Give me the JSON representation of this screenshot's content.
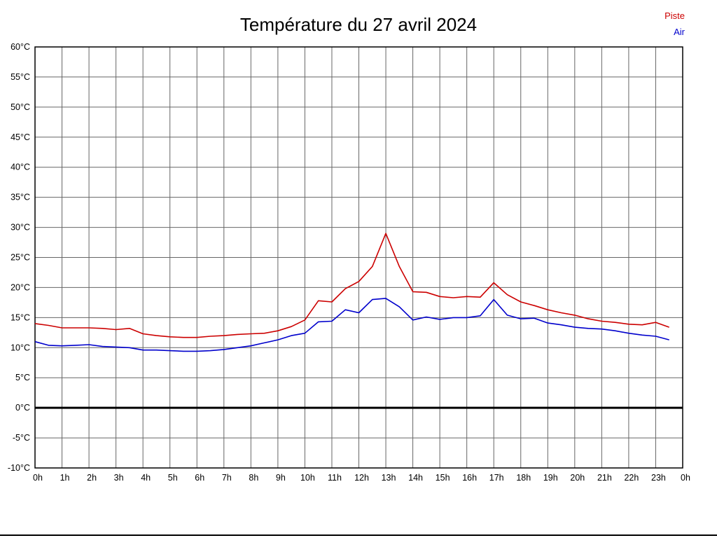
{
  "page": {
    "background": "#ffffff"
  },
  "chart_data": {
    "type": "line",
    "title": "Température du 27 avril 2024",
    "xlabel": "",
    "ylabel": "",
    "x_max": 24,
    "x_ticks": [
      "0h",
      "1h",
      "2h",
      "3h",
      "4h",
      "5h",
      "6h",
      "7h",
      "8h",
      "9h",
      "10h",
      "11h",
      "12h",
      "13h",
      "14h",
      "15h",
      "16h",
      "17h",
      "18h",
      "19h",
      "20h",
      "21h",
      "22h",
      "23h",
      "0h"
    ],
    "ylim": [
      -10,
      60
    ],
    "y_tick_step": 5,
    "y_ticks": [
      "60°C",
      "55°C",
      "50°C",
      "45°C",
      "40°C",
      "35°C",
      "30°C",
      "25°C",
      "20°C",
      "15°C",
      "10°C",
      "5°C",
      "0°C",
      "-5°C",
      "-10°C"
    ],
    "grid": true,
    "grid_color": "#666666",
    "zero_line_color": "#000000",
    "border_color": "#000000",
    "legend_position": "top-right",
    "series": [
      {
        "name": "Piste",
        "color": "#cc0000",
        "x": [
          0,
          0.5,
          1,
          1.5,
          2,
          2.5,
          3,
          3.5,
          4,
          4.5,
          5,
          5.5,
          6,
          6.5,
          7,
          7.5,
          8,
          8.5,
          9,
          9.5,
          10,
          10.5,
          11,
          11.5,
          12,
          12.5,
          13,
          13.5,
          14,
          14.5,
          15,
          15.5,
          16,
          16.5,
          17,
          17.5,
          18,
          18.5,
          19,
          19.5,
          20,
          20.5,
          21,
          21.5,
          22,
          22.5,
          23,
          23.5
        ],
        "values": [
          14.0,
          13.7,
          13.3,
          13.3,
          13.3,
          13.2,
          13.0,
          13.2,
          12.3,
          12.0,
          11.8,
          11.7,
          11.7,
          11.9,
          12.0,
          12.2,
          12.3,
          12.4,
          12.8,
          13.5,
          14.6,
          17.8,
          17.6,
          19.8,
          21.0,
          23.5,
          29.0,
          23.5,
          19.3,
          19.2,
          18.5,
          18.3,
          18.5,
          18.4,
          20.8,
          18.8,
          17.6,
          17.0,
          16.3,
          15.8,
          15.4,
          14.8,
          14.4,
          14.2,
          13.9,
          13.8,
          14.2,
          13.4
        ]
      },
      {
        "name": "Air",
        "color": "#0000cc",
        "x": [
          0,
          0.5,
          1,
          1.5,
          2,
          2.5,
          3,
          3.5,
          4,
          4.5,
          5,
          5.5,
          6,
          6.5,
          7,
          7.5,
          8,
          8.5,
          9,
          9.5,
          10,
          10.5,
          11,
          11.5,
          12,
          12.5,
          13,
          13.5,
          14,
          14.5,
          15,
          15.5,
          16,
          16.5,
          17,
          17.5,
          18,
          18.5,
          19,
          19.5,
          20,
          20.5,
          21,
          21.5,
          22,
          22.5,
          23,
          23.5
        ],
        "values": [
          11.0,
          10.4,
          10.3,
          10.4,
          10.5,
          10.2,
          10.1,
          10.0,
          9.6,
          9.6,
          9.5,
          9.4,
          9.4,
          9.5,
          9.7,
          10.0,
          10.3,
          10.8,
          11.3,
          12.0,
          12.4,
          14.3,
          14.4,
          16.3,
          15.8,
          18.0,
          18.2,
          16.8,
          14.6,
          15.1,
          14.7,
          15.0,
          15.0,
          15.3,
          18.0,
          15.4,
          14.8,
          14.9,
          14.1,
          13.8,
          13.4,
          13.2,
          13.1,
          12.8,
          12.4,
          12.1,
          11.9,
          11.3
        ]
      }
    ]
  }
}
